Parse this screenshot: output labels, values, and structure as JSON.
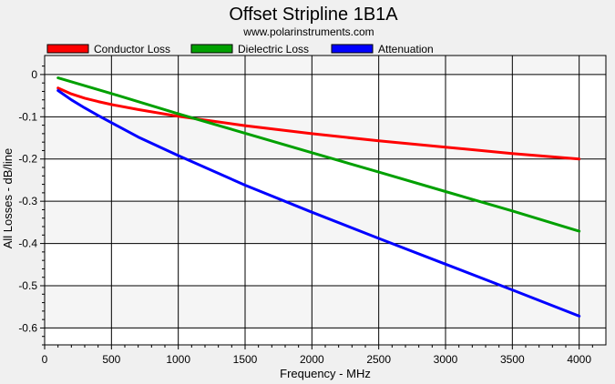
{
  "chart_data": {
    "type": "line",
    "title": "Offset Stripline 1B1A",
    "subtitle": "www.polarinstruments.com",
    "xlabel": "Frequency - MHz",
    "ylabel": "All Losses - dB/line",
    "xlim": [
      0,
      4200
    ],
    "ylim": [
      -0.64,
      0.045
    ],
    "xticks": [
      0,
      500,
      1000,
      1500,
      2000,
      2500,
      3000,
      3500,
      4000
    ],
    "yticks": [
      0,
      -0.1,
      -0.2,
      -0.3,
      -0.4,
      -0.5,
      -0.6
    ],
    "xtick_labels": [
      "0",
      "500",
      "1000",
      "1500",
      "2000",
      "2500",
      "3000",
      "3500",
      "4000"
    ],
    "ytick_labels": [
      "0",
      "-0.1",
      "-0.2",
      "-0.3",
      "-0.4",
      "-0.5",
      "-0.6"
    ],
    "grid": true,
    "legend_position": "top",
    "series": [
      {
        "name": "Conductor Loss",
        "color": "#ff0000",
        "x": [
          100,
          200,
          300,
          400,
          500,
          700,
          1000,
          1500,
          2000,
          2500,
          3000,
          3500,
          4000
        ],
        "y": [
          -0.032,
          -0.046,
          -0.056,
          -0.064,
          -0.071,
          -0.083,
          -0.099,
          -0.121,
          -0.14,
          -0.157,
          -0.172,
          -0.187,
          -0.2
        ]
      },
      {
        "name": "Dielectric Loss",
        "color": "#00a000",
        "x": [
          100,
          500,
          1000,
          1500,
          2000,
          2500,
          3000,
          3500,
          4000
        ],
        "y": [
          -0.008,
          -0.045,
          -0.093,
          -0.139,
          -0.185,
          -0.231,
          -0.277,
          -0.323,
          -0.371
        ]
      },
      {
        "name": "Attenuation",
        "color": "#0000ff",
        "x": [
          100,
          200,
          300,
          400,
          500,
          700,
          1000,
          1500,
          2000,
          2500,
          3000,
          3500,
          4000
        ],
        "y": [
          -0.038,
          -0.06,
          -0.079,
          -0.097,
          -0.114,
          -0.148,
          -0.192,
          -0.262,
          -0.326,
          -0.388,
          -0.449,
          -0.51,
          -0.572
        ]
      }
    ]
  }
}
